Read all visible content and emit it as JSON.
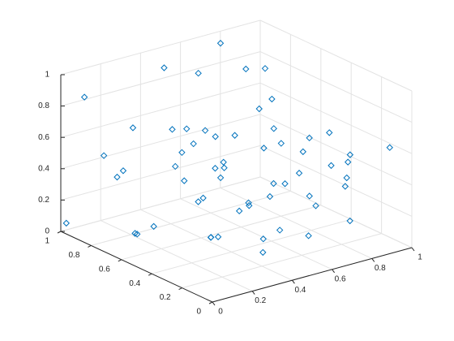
{
  "chart_data": {
    "type": "scatter3",
    "x": [
      0.05,
      0.12,
      0.2,
      0.31,
      0.44,
      0.52,
      0.63,
      0.71,
      0.85,
      0.93,
      0.08,
      0.17,
      0.26,
      0.37,
      0.48,
      0.55,
      0.66,
      0.78,
      0.88,
      0.97,
      0.03,
      0.15,
      0.24,
      0.35,
      0.41,
      0.58,
      0.69,
      0.74,
      0.82,
      0.95,
      0.1,
      0.19,
      0.29,
      0.39,
      0.5,
      0.61,
      0.72,
      0.8,
      0.9,
      0.99,
      0.06,
      0.22,
      0.33,
      0.46,
      0.57,
      0.68,
      0.76,
      0.86,
      0.92,
      0.14,
      0.27,
      0.43,
      0.53,
      0.64,
      0.84,
      0.02,
      0.36,
      0.6,
      0.89,
      0.47
    ],
    "y": [
      0.91,
      0.12,
      0.65,
      0.33,
      0.78,
      0.05,
      0.52,
      0.88,
      0.21,
      0.44,
      0.35,
      0.72,
      0.1,
      0.58,
      0.95,
      0.27,
      0.63,
      0.15,
      0.81,
      0.39,
      0.55,
      0.02,
      0.84,
      0.47,
      0.2,
      0.69,
      0.31,
      0.92,
      0.6,
      0.08,
      0.76,
      0.42,
      0.97,
      0.18,
      0.51,
      0.85,
      0.04,
      0.66,
      0.29,
      0.73,
      0.14,
      0.3,
      0.62,
      0.87,
      0.11,
      0.45,
      0.98,
      0.36,
      0.57,
      0.9,
      0.48,
      0.23,
      0.79,
      0.16,
      0.7,
      0.99,
      0.07,
      0.41,
      0.95,
      0.6
    ],
    "z": [
      0.88,
      0.32,
      0.12,
      0.6,
      0.45,
      0.22,
      0.78,
      0.15,
      0.55,
      0.35,
      0.68,
      0.05,
      0.48,
      0.25,
      0.9,
      0.7,
      0.12,
      0.4,
      0.82,
      0.28,
      0.18,
      0.52,
      0.65,
      0.08,
      0.75,
      0.38,
      0.58,
      0.98,
      0.2,
      0.62,
      0.42,
      0.85,
      0.3,
      0.1,
      0.66,
      0.5,
      0.25,
      0.72,
      0.45,
      0.15,
      0.58,
      0.2,
      0.38,
      0.55,
      0.8,
      0.02,
      0.35,
      0.62,
      0.1,
      0.48,
      0.7,
      0.15,
      0.92,
      0.32,
      0.5,
      0.05,
      0.6,
      0.28,
      0.75,
      0.42
    ],
    "xlim": [
      0,
      1
    ],
    "ylim": [
      0,
      1
    ],
    "zlim": [
      0,
      1
    ],
    "xticks": [
      0,
      0.2,
      0.4,
      0.6,
      0.8,
      1
    ],
    "yticks": [
      0,
      0.2,
      0.4,
      0.6,
      0.8,
      1
    ],
    "zticks": [
      0,
      0.2,
      0.4,
      0.6,
      0.8,
      1
    ],
    "color": "#0072bd",
    "marker": "diamond",
    "grid": true
  }
}
